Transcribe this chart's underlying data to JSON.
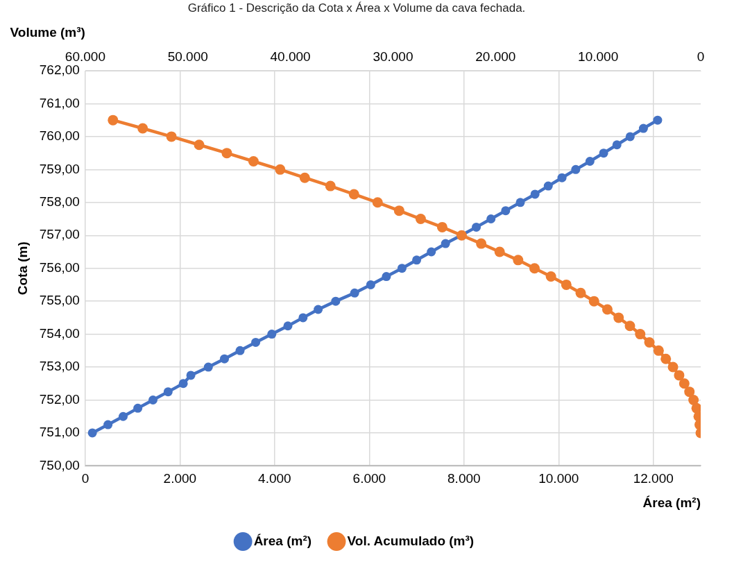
{
  "chart_data": {
    "type": "line",
    "title": "Gráfico 1 - Descrição da Cota x Área x Volume da cava fechada.",
    "xlabel": "Área (m²)",
    "x2label": "Volume (m³)",
    "ylabel": "Cota (m)",
    "xlim": [
      0,
      13000
    ],
    "xticks": [
      {
        "value": 0,
        "label": "0"
      },
      {
        "value": 2000,
        "label": "2.000"
      },
      {
        "value": 4000,
        "label": "4.000"
      },
      {
        "value": 6000,
        "label": "6.000"
      },
      {
        "value": 8000,
        "label": "8.000"
      },
      {
        "value": 10000,
        "label": "10.000"
      },
      {
        "value": 12000,
        "label": "12.000"
      }
    ],
    "x2lim": [
      60000,
      0
    ],
    "x2ticks": [
      {
        "value": 60000,
        "label": "60.000"
      },
      {
        "value": 50000,
        "label": "50.000"
      },
      {
        "value": 40000,
        "label": "40.000"
      },
      {
        "value": 30000,
        "label": "30.000"
      },
      {
        "value": 20000,
        "label": "20.000"
      },
      {
        "value": 10000,
        "label": "10.000"
      },
      0
    ],
    "ylim": [
      750,
      762
    ],
    "yticks": [
      {
        "value": 750,
        "label": "750,00"
      },
      {
        "value": 751,
        "label": "751,00"
      },
      {
        "value": 752,
        "label": "752,00"
      },
      {
        "value": 753,
        "label": "753,00"
      },
      {
        "value": 754,
        "label": "754,00"
      },
      {
        "value": 755,
        "label": "755,00"
      },
      {
        "value": 756,
        "label": "756,00"
      },
      {
        "value": 757,
        "label": "757,00"
      },
      {
        "value": 758,
        "label": "758,00"
      },
      {
        "value": 759,
        "label": "759,00"
      },
      {
        "value": 760,
        "label": "760,00"
      },
      {
        "value": 761,
        "label": "761,00"
      },
      {
        "value": 762,
        "label": "762,00"
      }
    ],
    "grid": true,
    "legend": "bottom",
    "marker": "circle",
    "line_style": "solid",
    "series": [
      {
        "name": "Área (m²)",
        "color": "#4472c4",
        "x": [
          150,
          480,
          800,
          1110,
          1430,
          1750,
          2070,
          2230,
          2600,
          2940,
          3270,
          3600,
          3940,
          4280,
          4600,
          4920,
          5290,
          5690,
          6030,
          6360,
          6690,
          7000,
          7310,
          7610,
          7940,
          8260,
          8570,
          8880,
          9190,
          9500,
          9780,
          10070,
          10360,
          10660,
          10950,
          11230,
          11510,
          11790,
          12090
        ],
        "values": [
          751,
          751.25,
          751.5,
          751.75,
          752,
          752.25,
          752.5,
          752.75,
          753,
          753.25,
          753.5,
          753.75,
          754,
          754.25,
          754.5,
          754.75,
          755,
          755.25,
          755.5,
          755.75,
          756,
          756.25,
          756.5,
          756.75,
          757,
          757.25,
          757.5,
          757.75,
          758,
          758.25,
          758.5,
          758.75,
          759,
          759.25,
          759.5,
          759.75,
          760,
          760.25,
          760.5
        ]
      },
      {
        "name": "Vol. Acumulado (m³)",
        "color": "#ed7d31",
        "axis": "x2",
        "x": [
          57300,
          54400,
          51600,
          48900,
          46200,
          43600,
          41000,
          38600,
          36100,
          33800,
          31500,
          29400,
          27300,
          25200,
          23300,
          21400,
          19600,
          17800,
          16200,
          14600,
          13100,
          11700,
          10400,
          9100,
          8000,
          6900,
          5900,
          5000,
          4100,
          3400,
          2700,
          2100,
          1600,
          1100,
          700,
          400,
          200,
          100,
          0
        ],
        "values": [
          760.5,
          760.25,
          760,
          759.75,
          759.5,
          759.25,
          759,
          758.75,
          758.5,
          758.25,
          758,
          757.75,
          757.5,
          757.25,
          757,
          756.75,
          756.5,
          756.25,
          756,
          755.75,
          755.5,
          755.25,
          755,
          754.75,
          754.5,
          754.25,
          754,
          753.75,
          753.5,
          753.25,
          753,
          752.75,
          752.5,
          752.25,
          752,
          751.75,
          751.5,
          751.25,
          751
        ]
      }
    ]
  }
}
